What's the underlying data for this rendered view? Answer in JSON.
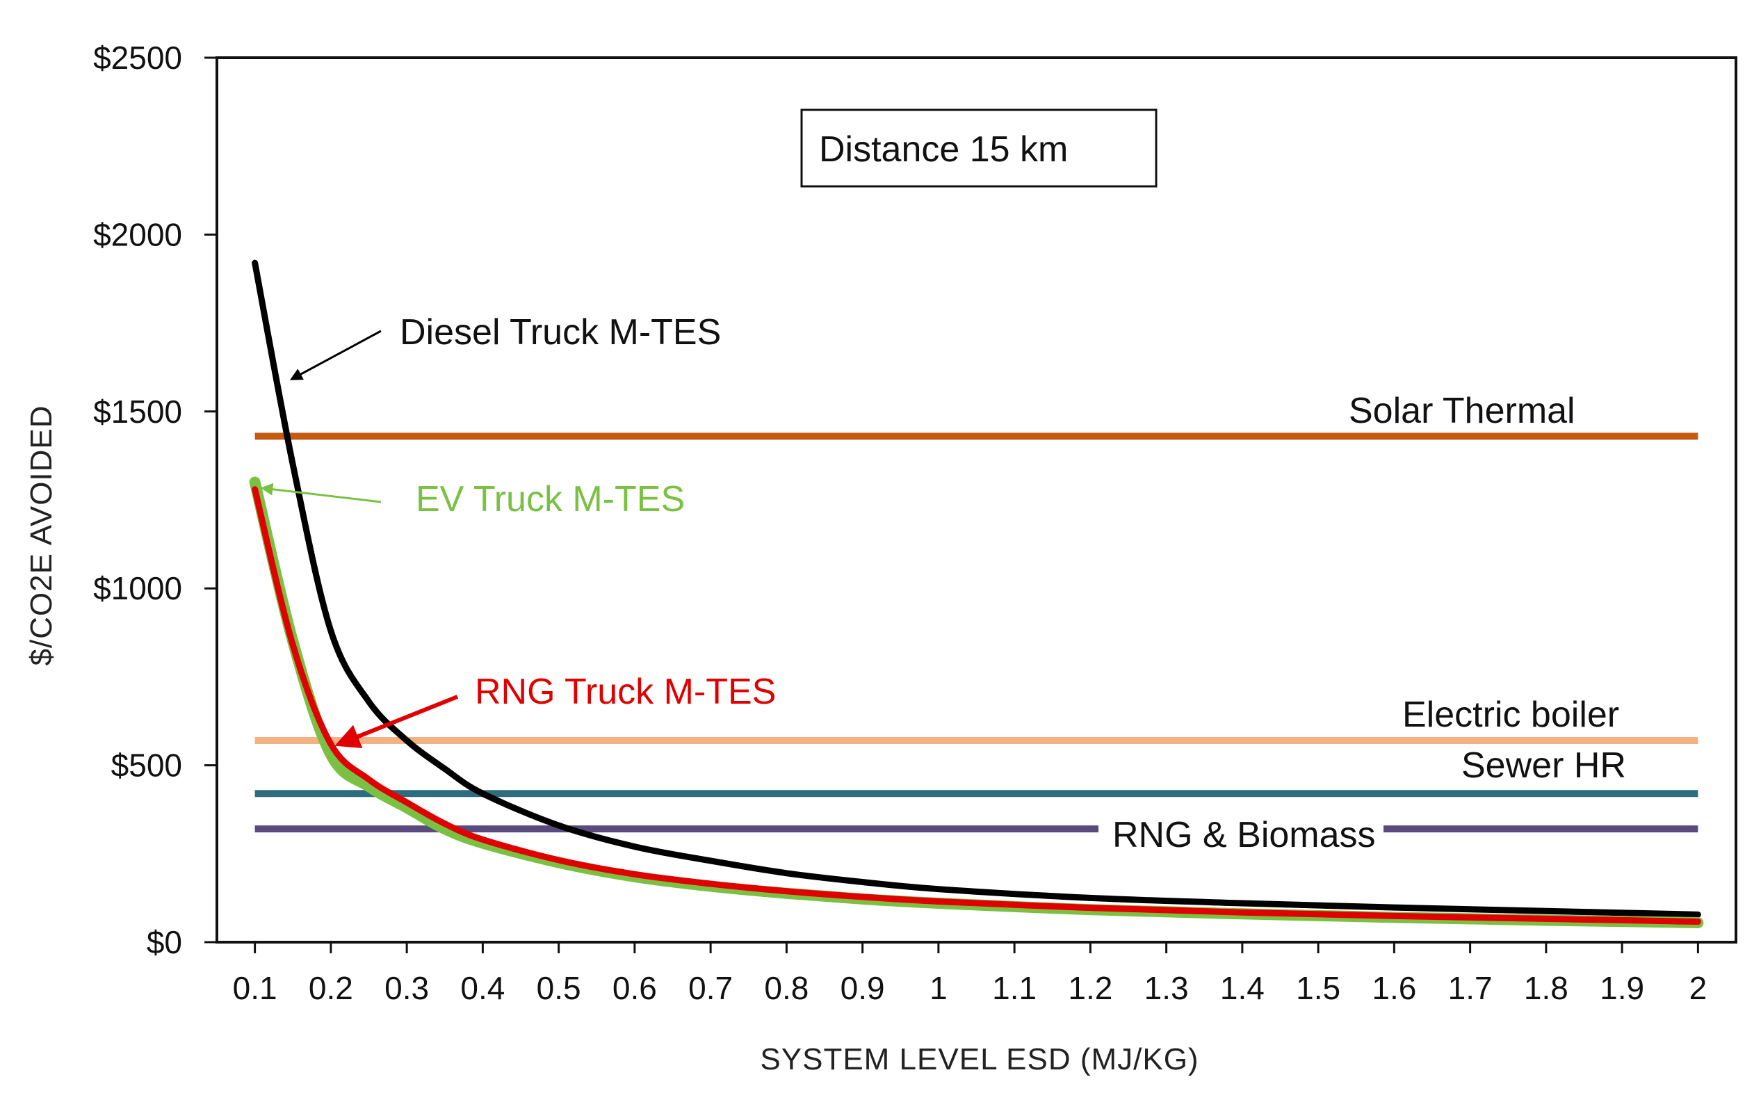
{
  "chart_data": {
    "type": "line",
    "title": "",
    "annotation_box": "Distance 15 km",
    "xlabel": "SYSTEM LEVEL ESD (MJ/KG)",
    "ylabel": "$/CO2E AVOIDED",
    "xlim": [
      0.05,
      2.05
    ],
    "ylim": [
      0,
      2500
    ],
    "x_ticks": [
      0.1,
      0.2,
      0.3,
      0.4,
      0.5,
      0.6,
      0.7,
      0.8,
      0.9,
      1,
      1.1,
      1.2,
      1.3,
      1.4,
      1.5,
      1.6,
      1.7,
      1.8,
      1.9,
      2
    ],
    "x_tick_labels": [
      "0.1",
      "0.2",
      "0.3",
      "0.4",
      "0.5",
      "0.6",
      "0.7",
      "0.8",
      "0.9",
      "1",
      "1.1",
      "1.2",
      "1.3",
      "1.4",
      "1.5",
      "1.6",
      "1.7",
      "1.8",
      "1.9",
      "2"
    ],
    "y_ticks": [
      0,
      500,
      1000,
      1500,
      2000,
      2500
    ],
    "y_tick_labels": [
      "$0",
      "$500",
      "$1000",
      "$1500",
      "$2000",
      "$2500"
    ],
    "series": [
      {
        "name": "Diesel Truck M-TES",
        "color": "#000000",
        "x": [
          0.1,
          0.15,
          0.2,
          0.25,
          0.3,
          0.35,
          0.4,
          0.5,
          0.6,
          0.7,
          0.8,
          0.9,
          1.0,
          1.2,
          1.4,
          1.6,
          1.8,
          2.0
        ],
        "y": [
          1920,
          1350,
          880,
          680,
          570,
          490,
          420,
          330,
          270,
          230,
          195,
          170,
          150,
          125,
          110,
          98,
          88,
          78
        ]
      },
      {
        "name": "EV Truck M-TES",
        "color": "#7ac143",
        "x": [
          0.1,
          0.15,
          0.2,
          0.25,
          0.3,
          0.35,
          0.4,
          0.5,
          0.6,
          0.7,
          0.8,
          0.9,
          1.0,
          1.2,
          1.4,
          1.6,
          1.8,
          2.0
        ],
        "y": [
          1300,
          850,
          530,
          440,
          380,
          320,
          280,
          225,
          185,
          158,
          138,
          122,
          110,
          92,
          80,
          70,
          62,
          55
        ]
      },
      {
        "name": "RNG Truck M-TES",
        "color": "#e00000",
        "x": [
          0.1,
          0.15,
          0.2,
          0.25,
          0.3,
          0.35,
          0.4,
          0.5,
          0.6,
          0.7,
          0.8,
          0.9,
          1.0,
          1.2,
          1.4,
          1.6,
          1.8,
          2.0
        ],
        "y": [
          1280,
          840,
          560,
          460,
          395,
          335,
          290,
          232,
          192,
          165,
          144,
          128,
          115,
          97,
          84,
          74,
          66,
          58
        ]
      }
    ],
    "reference_lines": [
      {
        "name": "Solar Thermal",
        "value": 1430,
        "color": "#c55a11"
      },
      {
        "name": "Electric boiler",
        "value": 570,
        "color": "#f4b183"
      },
      {
        "name": "Sewer HR",
        "value": 420,
        "color": "#2e6d7e"
      },
      {
        "name": "RNG & Biomass",
        "value": 320,
        "color": "#5b4a7e"
      }
    ]
  }
}
